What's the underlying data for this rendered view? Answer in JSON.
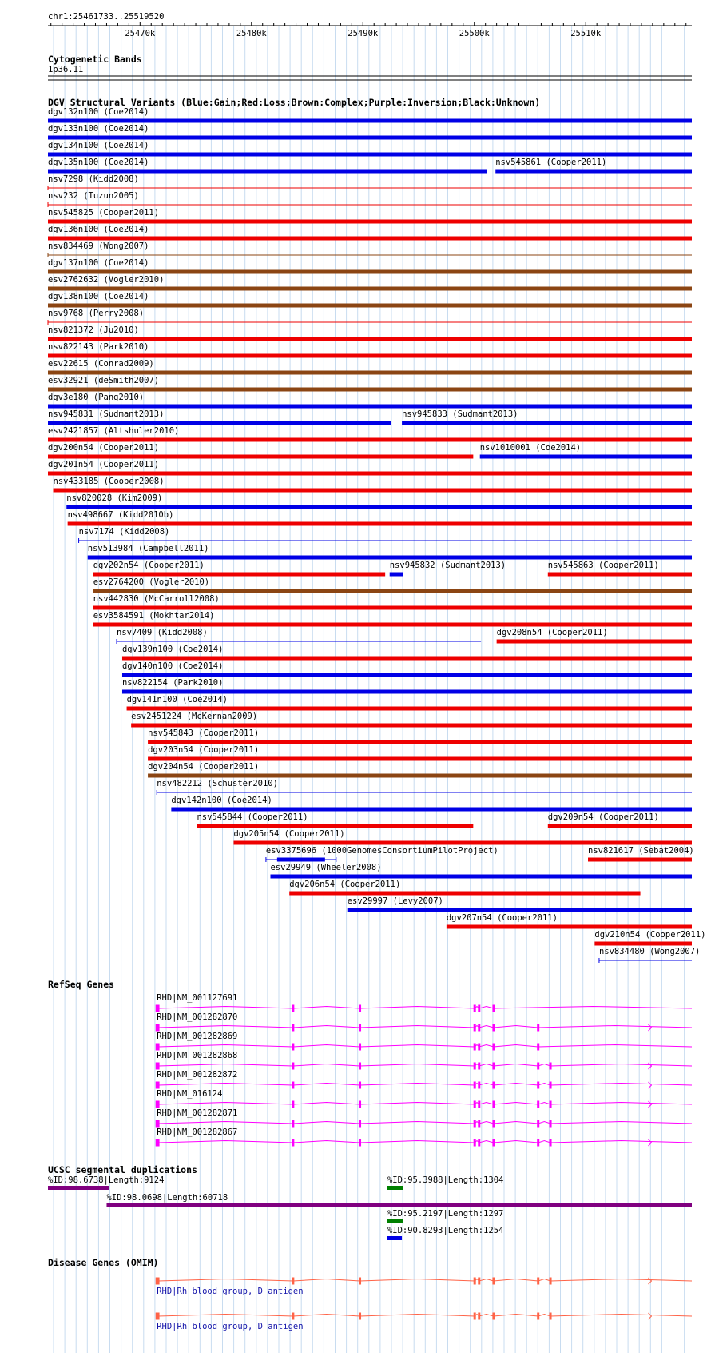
{
  "ruler": {
    "label": "chr1:25461733..25519520",
    "start": 25461733,
    "end": 25519520,
    "tick_labels": [
      {
        "pos": 25470000,
        "label": "25470k"
      },
      {
        "pos": 25480000,
        "label": "25480k"
      },
      {
        "pos": 25490000,
        "label": "25490k"
      },
      {
        "pos": 25500000,
        "label": "25500k"
      },
      {
        "pos": 25510000,
        "label": "25510k"
      }
    ]
  },
  "cytobands": {
    "title": "Cytogenetic Bands",
    "band": "1p36.11"
  },
  "dgv": {
    "title": "DGV Structural Variants (Blue:Gain;Red:Loss;Brown:Complex;Purple:Inversion;Black:Unknown)",
    "colors": {
      "gain": "#0000e6",
      "loss": "#ee0000",
      "complex": "#8b4513",
      "inversion": "#800080",
      "unknown": "#000000"
    },
    "rows": [
      [
        {
          "label": "dgv132n100 (Coe2014)",
          "type": "gain",
          "start": 25461733,
          "end": 25519520,
          "style": "thick"
        }
      ],
      [
        {
          "label": "dgv133n100 (Coe2014)",
          "type": "gain",
          "start": 25461733,
          "end": 25519520,
          "style": "thick"
        }
      ],
      [
        {
          "label": "dgv134n100 (Coe2014)",
          "type": "gain",
          "start": 25461733,
          "end": 25519520,
          "style": "thick"
        }
      ],
      [
        {
          "label": "dgv135n100 (Coe2014)",
          "type": "gain",
          "start": 25461733,
          "end": 25501100,
          "style": "thick"
        },
        {
          "label": "nsv545861 (Cooper2011)",
          "type": "gain",
          "start": 25501900,
          "end": 25519520,
          "style": "thick"
        }
      ],
      [
        {
          "label": "nsv7298 (Kidd2008)",
          "type": "loss",
          "start": 25461733,
          "end": 25519520,
          "style": "thin"
        }
      ],
      [
        {
          "label": "nsv232 (Tuzun2005)",
          "type": "loss",
          "start": 25461733,
          "end": 25519520,
          "style": "thin"
        }
      ],
      [
        {
          "label": "nsv545825 (Cooper2011)",
          "type": "loss",
          "start": 25461733,
          "end": 25519520,
          "style": "thick"
        }
      ],
      [
        {
          "label": "dgv136n100 (Coe2014)",
          "type": "loss",
          "start": 25461733,
          "end": 25519520,
          "style": "thick"
        }
      ],
      [
        {
          "label": "nsv834469 (Wong2007)",
          "type": "complex",
          "start": 25461733,
          "end": 25519520,
          "style": "thin"
        }
      ],
      [
        {
          "label": "dgv137n100 (Coe2014)",
          "type": "complex",
          "start": 25461733,
          "end": 25519520,
          "style": "thick"
        }
      ],
      [
        {
          "label": "esv2762632 (Vogler2010)",
          "type": "complex",
          "start": 25461733,
          "end": 25519520,
          "style": "thick"
        }
      ],
      [
        {
          "label": "dgv138n100 (Coe2014)",
          "type": "complex",
          "start": 25461733,
          "end": 25519520,
          "style": "thick"
        }
      ],
      [
        {
          "label": "nsv9768 (Perry2008)",
          "type": "loss",
          "start": 25461733,
          "end": 25519520,
          "style": "thin"
        }
      ],
      [
        {
          "label": "nsv821372 (Ju2010)",
          "type": "loss",
          "start": 25461733,
          "end": 25519520,
          "style": "thick"
        }
      ],
      [
        {
          "label": "nsv822143 (Park2010)",
          "type": "loss",
          "start": 25461733,
          "end": 25519520,
          "style": "thick"
        }
      ],
      [
        {
          "label": "esv22615 (Conrad2009)",
          "type": "complex",
          "start": 25461733,
          "end": 25519520,
          "style": "thick"
        }
      ],
      [
        {
          "label": "esv32921 (deSmith2007)",
          "type": "complex",
          "start": 25461733,
          "end": 25519520,
          "style": "thick"
        }
      ],
      [
        {
          "label": "dgv3e180 (Pang2010)",
          "type": "gain",
          "start": 25461733,
          "end": 25519520,
          "style": "thick"
        }
      ],
      [
        {
          "label": "nsv945831 (Sudmant2013)",
          "type": "gain",
          "start": 25461733,
          "end": 25492500,
          "style": "thick"
        },
        {
          "label": "nsv945833 (Sudmant2013)",
          "type": "gain",
          "start": 25493500,
          "end": 25519520,
          "style": "thick"
        }
      ],
      [
        {
          "label": "esv2421857 (Altshuler2010)",
          "type": "loss",
          "start": 25461733,
          "end": 25519520,
          "style": "thick"
        }
      ],
      [
        {
          "label": "dgv200n54 (Cooper2011)",
          "type": "loss",
          "start": 25461733,
          "end": 25499900,
          "style": "thick"
        },
        {
          "label": "nsv1010001 (Coe2014)",
          "type": "gain",
          "start": 25500500,
          "end": 25519520,
          "style": "thick"
        }
      ],
      [
        {
          "label": "dgv201n54 (Cooper2011)",
          "type": "loss",
          "start": 25461733,
          "end": 25519520,
          "style": "thick"
        }
      ],
      [
        {
          "label": "nsv433185 (Cooper2008)",
          "type": "loss",
          "start": 25462200,
          "end": 25519520,
          "style": "thick"
        }
      ],
      [
        {
          "label": "nsv820028 (Kim2009)",
          "type": "gain",
          "start": 25463400,
          "end": 25519520,
          "style": "thick"
        }
      ],
      [
        {
          "label": "nsv498667 (Kidd2010b)",
          "type": "loss",
          "start": 25463500,
          "end": 25519520,
          "style": "thick"
        }
      ],
      [
        {
          "label": "nsv7174 (Kidd2008)",
          "type": "gain",
          "start": 25464500,
          "end": 25519520,
          "style": "thin"
        }
      ],
      [
        {
          "label": "nsv513984 (Campbell2011)",
          "type": "gain",
          "start": 25465300,
          "end": 25519520,
          "style": "thick"
        }
      ],
      [
        {
          "label": "dgv202n54 (Cooper2011)",
          "type": "loss",
          "start": 25465800,
          "end": 25492000,
          "style": "thick"
        },
        {
          "label": "nsv945832 (Sudmant2013)",
          "type": "gain",
          "start": 25492400,
          "end": 25493600,
          "style": "thick"
        },
        {
          "label": "nsv545863 (Cooper2011)",
          "type": "loss",
          "start": 25506600,
          "end": 25519520,
          "style": "thick"
        }
      ],
      [
        {
          "label": "esv2764200 (Vogler2010)",
          "type": "complex",
          "start": 25465800,
          "end": 25519520,
          "style": "thick"
        }
      ],
      [
        {
          "label": "nsv442830 (McCarroll2008)",
          "type": "loss",
          "start": 25465800,
          "end": 25519520,
          "style": "thick"
        }
      ],
      [
        {
          "label": "esv3584591 (Mokhtar2014)",
          "type": "loss",
          "start": 25465800,
          "end": 25519520,
          "style": "thick"
        }
      ],
      [
        {
          "label": "nsv7409 (Kidd2008)",
          "type": "gain",
          "start": 25467900,
          "end": 25500600,
          "style": "thin"
        },
        {
          "label": "dgv208n54 (Cooper2011)",
          "type": "loss",
          "start": 25502000,
          "end": 25519520,
          "style": "thick"
        }
      ],
      [
        {
          "label": "dgv139n100 (Coe2014)",
          "type": "loss",
          "start": 25468400,
          "end": 25519520,
          "style": "thick"
        }
      ],
      [
        {
          "label": "dgv140n100 (Coe2014)",
          "type": "gain",
          "start": 25468400,
          "end": 25519520,
          "style": "thick"
        }
      ],
      [
        {
          "label": "nsv822154 (Park2010)",
          "type": "gain",
          "start": 25468400,
          "end": 25519520,
          "style": "thick"
        }
      ],
      [
        {
          "label": "dgv141n100 (Coe2014)",
          "type": "loss",
          "start": 25468800,
          "end": 25519520,
          "style": "thick"
        }
      ],
      [
        {
          "label": "esv2451224 (McKernan2009)",
          "type": "loss",
          "start": 25469200,
          "end": 25519520,
          "style": "thick"
        }
      ],
      [
        {
          "label": "nsv545843 (Cooper2011)",
          "type": "loss",
          "start": 25470700,
          "end": 25519520,
          "style": "thick"
        }
      ],
      [
        {
          "label": "dgv203n54 (Cooper2011)",
          "type": "loss",
          "start": 25470700,
          "end": 25519520,
          "style": "thick"
        }
      ],
      [
        {
          "label": "dgv204n54 (Cooper2011)",
          "type": "complex",
          "start": 25470700,
          "end": 25519520,
          "style": "thick"
        }
      ],
      [
        {
          "label": "nsv482212 (Schuster2010)",
          "type": "gain",
          "start": 25471500,
          "end": 25519520,
          "style": "thin"
        }
      ],
      [
        {
          "label": "dgv142n100 (Coe2014)",
          "type": "gain",
          "start": 25472800,
          "end": 25519520,
          "style": "thick"
        }
      ],
      [
        {
          "label": "nsv545844 (Cooper2011)",
          "type": "loss",
          "start": 25475100,
          "end": 25499900,
          "style": "thick"
        },
        {
          "label": "dgv209n54 (Cooper2011)",
          "type": "loss",
          "start": 25506600,
          "end": 25519520,
          "style": "thick"
        }
      ],
      [
        {
          "label": "dgv205n54 (Cooper2011)",
          "type": "loss",
          "start": 25478400,
          "end": 25519520,
          "style": "thick"
        }
      ],
      [
        {
          "label": "esv3375696 (1000GenomesConsortiumPilotProject)",
          "type": "gain",
          "start": 25481300,
          "end": 25487600,
          "style": "split",
          "core_start": 25482300,
          "core_end": 25486600
        },
        {
          "label": "nsv821617 (Sebat2004)",
          "type": "loss",
          "start": 25510200,
          "end": 25519520,
          "style": "thick"
        }
      ],
      [
        {
          "label": "esv29949 (Wheeler2008)",
          "type": "gain",
          "start": 25481700,
          "end": 25519520,
          "style": "thick"
        }
      ],
      [
        {
          "label": "dgv206n54 (Cooper2011)",
          "type": "loss",
          "start": 25483400,
          "end": 25514900,
          "style": "thick"
        }
      ],
      [
        {
          "label": "esv29997 (Levy2007)",
          "type": "gain",
          "start": 25488600,
          "end": 25519520,
          "style": "thick"
        }
      ],
      [
        {
          "label": "dgv207n54 (Cooper2011)",
          "type": "loss",
          "start": 25497500,
          "end": 25519520,
          "style": "thick"
        }
      ],
      [
        {
          "label": "dgv210n54 (Cooper2011)",
          "type": "loss",
          "start": 25510800,
          "end": 25519520,
          "style": "thick"
        }
      ],
      [
        {
          "label": "nsv834480 (Wong2007)",
          "type": "gain",
          "start": 25511200,
          "end": 25519520,
          "style": "thin"
        }
      ]
    ]
  },
  "refseq": {
    "title": "RefSeq Genes",
    "color": "#ff00ff",
    "transcripts": [
      {
        "label": "RHD|NM_001127691",
        "exons": [
          25471633,
          25483733,
          25489733,
          25500033,
          25500433,
          25501733
        ],
        "arrow": false
      },
      {
        "label": "RHD|NM_001282870",
        "exons": [
          25471633,
          25483733,
          25489733,
          25500033,
          25500433,
          25501733,
          25505733
        ],
        "arrow": true
      },
      {
        "label": "RHD|NM_001282869",
        "exons": [
          25471633,
          25483733,
          25489733,
          25500033,
          25500433,
          25501733,
          25505733
        ],
        "arrow": false
      },
      {
        "label": "RHD|NM_001282868",
        "exons": [
          25471633,
          25483733,
          25489733,
          25500033,
          25500433,
          25501733,
          25505733,
          25506833
        ],
        "arrow": true
      },
      {
        "label": "RHD|NM_001282872",
        "exons": [
          25471633,
          25483733,
          25489733,
          25500033,
          25500433,
          25501733,
          25505733,
          25506833
        ],
        "arrow": true
      },
      {
        "label": "RHD|NM_016124",
        "exons": [
          25471633,
          25483733,
          25489733,
          25500033,
          25500433,
          25501733,
          25505733,
          25506833
        ],
        "arrow": true
      },
      {
        "label": "RHD|NM_001282871",
        "exons": [
          25471633,
          25483733,
          25489733,
          25500033,
          25500433,
          25501733,
          25505733,
          25506833
        ],
        "arrow": false
      },
      {
        "label": "RHD|NM_001282867",
        "exons": [
          25471633,
          25483733,
          25489733,
          25500033,
          25500433,
          25501733,
          25505733,
          25506833
        ],
        "arrow": true
      }
    ]
  },
  "segdup": {
    "title": "UCSC segmental duplications",
    "items": [
      {
        "label": "%ID:98.6738|Length:9124",
        "start": 25461733,
        "end": 25467200,
        "color": "#800080",
        "row": 0
      },
      {
        "label": "%ID:95.3988|Length:1304",
        "start": 25492200,
        "end": 25493600,
        "color": "#008000",
        "row": 0
      },
      {
        "label": "%ID:98.0698|Length:60718",
        "start": 25467000,
        "end": 25519520,
        "color": "#800080",
        "row": 1
      },
      {
        "label": "%ID:95.2197|Length:1297",
        "start": 25492200,
        "end": 25493600,
        "color": "#008000",
        "row": 2
      },
      {
        "label": "%ID:90.8293|Length:1254",
        "start": 25492200,
        "end": 25493500,
        "color": "#0000e6",
        "row": 3
      }
    ]
  },
  "omim": {
    "title": "Disease Genes (OMIM)",
    "color": "#ff6347",
    "text_color": "#1414aa",
    "genes": [
      {
        "label": "RHD|Rh blood group, D antigen",
        "exons": [
          25471633,
          25483733,
          25489733,
          25500033,
          25500433,
          25501733,
          25505733,
          25506833
        ]
      },
      {
        "label": "RHD|Rh blood group, D antigen",
        "exons": [
          25471633,
          25483733,
          25489733,
          25500033,
          25500433,
          25501733,
          25505733,
          25506833
        ]
      }
    ]
  }
}
